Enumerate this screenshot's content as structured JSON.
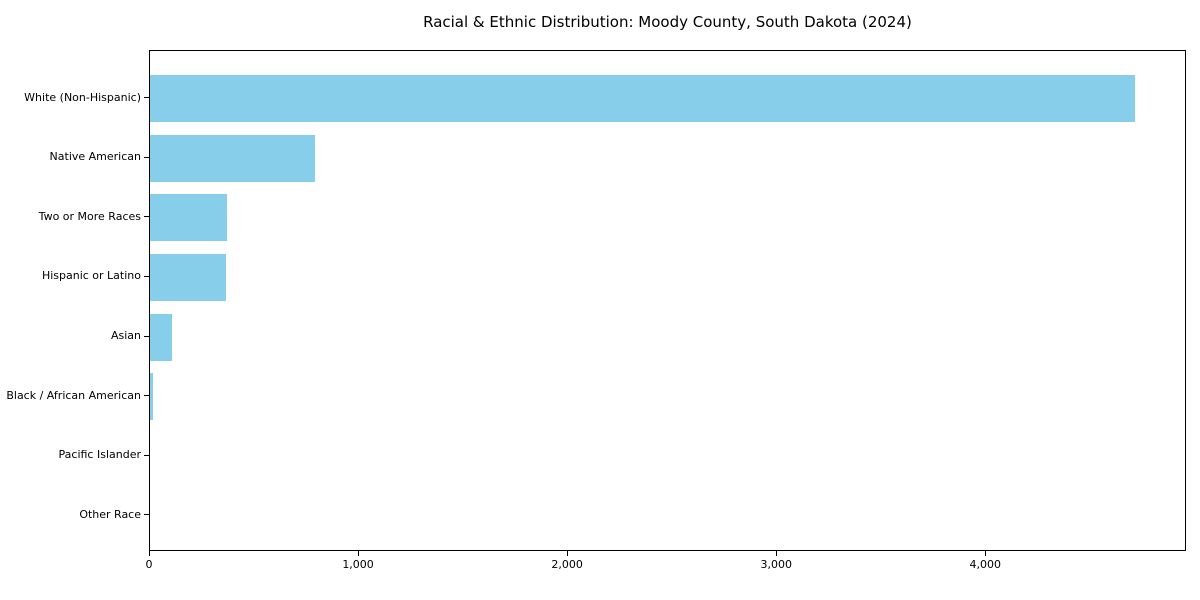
{
  "chart_data": {
    "type": "bar",
    "orientation": "horizontal",
    "title": "Racial & Ethnic Distribution: Moody County, South Dakota (2024)",
    "categories": [
      "White (Non-Hispanic)",
      "Native American",
      "Two or More Races",
      "Hispanic or Latino",
      "Asian",
      "Black / African American",
      "Pacific Islander",
      "Other Race"
    ],
    "values": [
      4720,
      790,
      370,
      365,
      105,
      15,
      0,
      0
    ],
    "xlabel": "",
    "ylabel": "",
    "xlim": [
      0,
      4960
    ],
    "x_ticks": [
      0,
      1000,
      2000,
      3000,
      4000
    ],
    "x_tick_labels": [
      "0",
      "1,000",
      "2,000",
      "3,000",
      "4,000"
    ],
    "bar_color": "#87CEEB",
    "text_color": "#000000",
    "grid": false,
    "legend": null,
    "sort_order": "descending"
  }
}
